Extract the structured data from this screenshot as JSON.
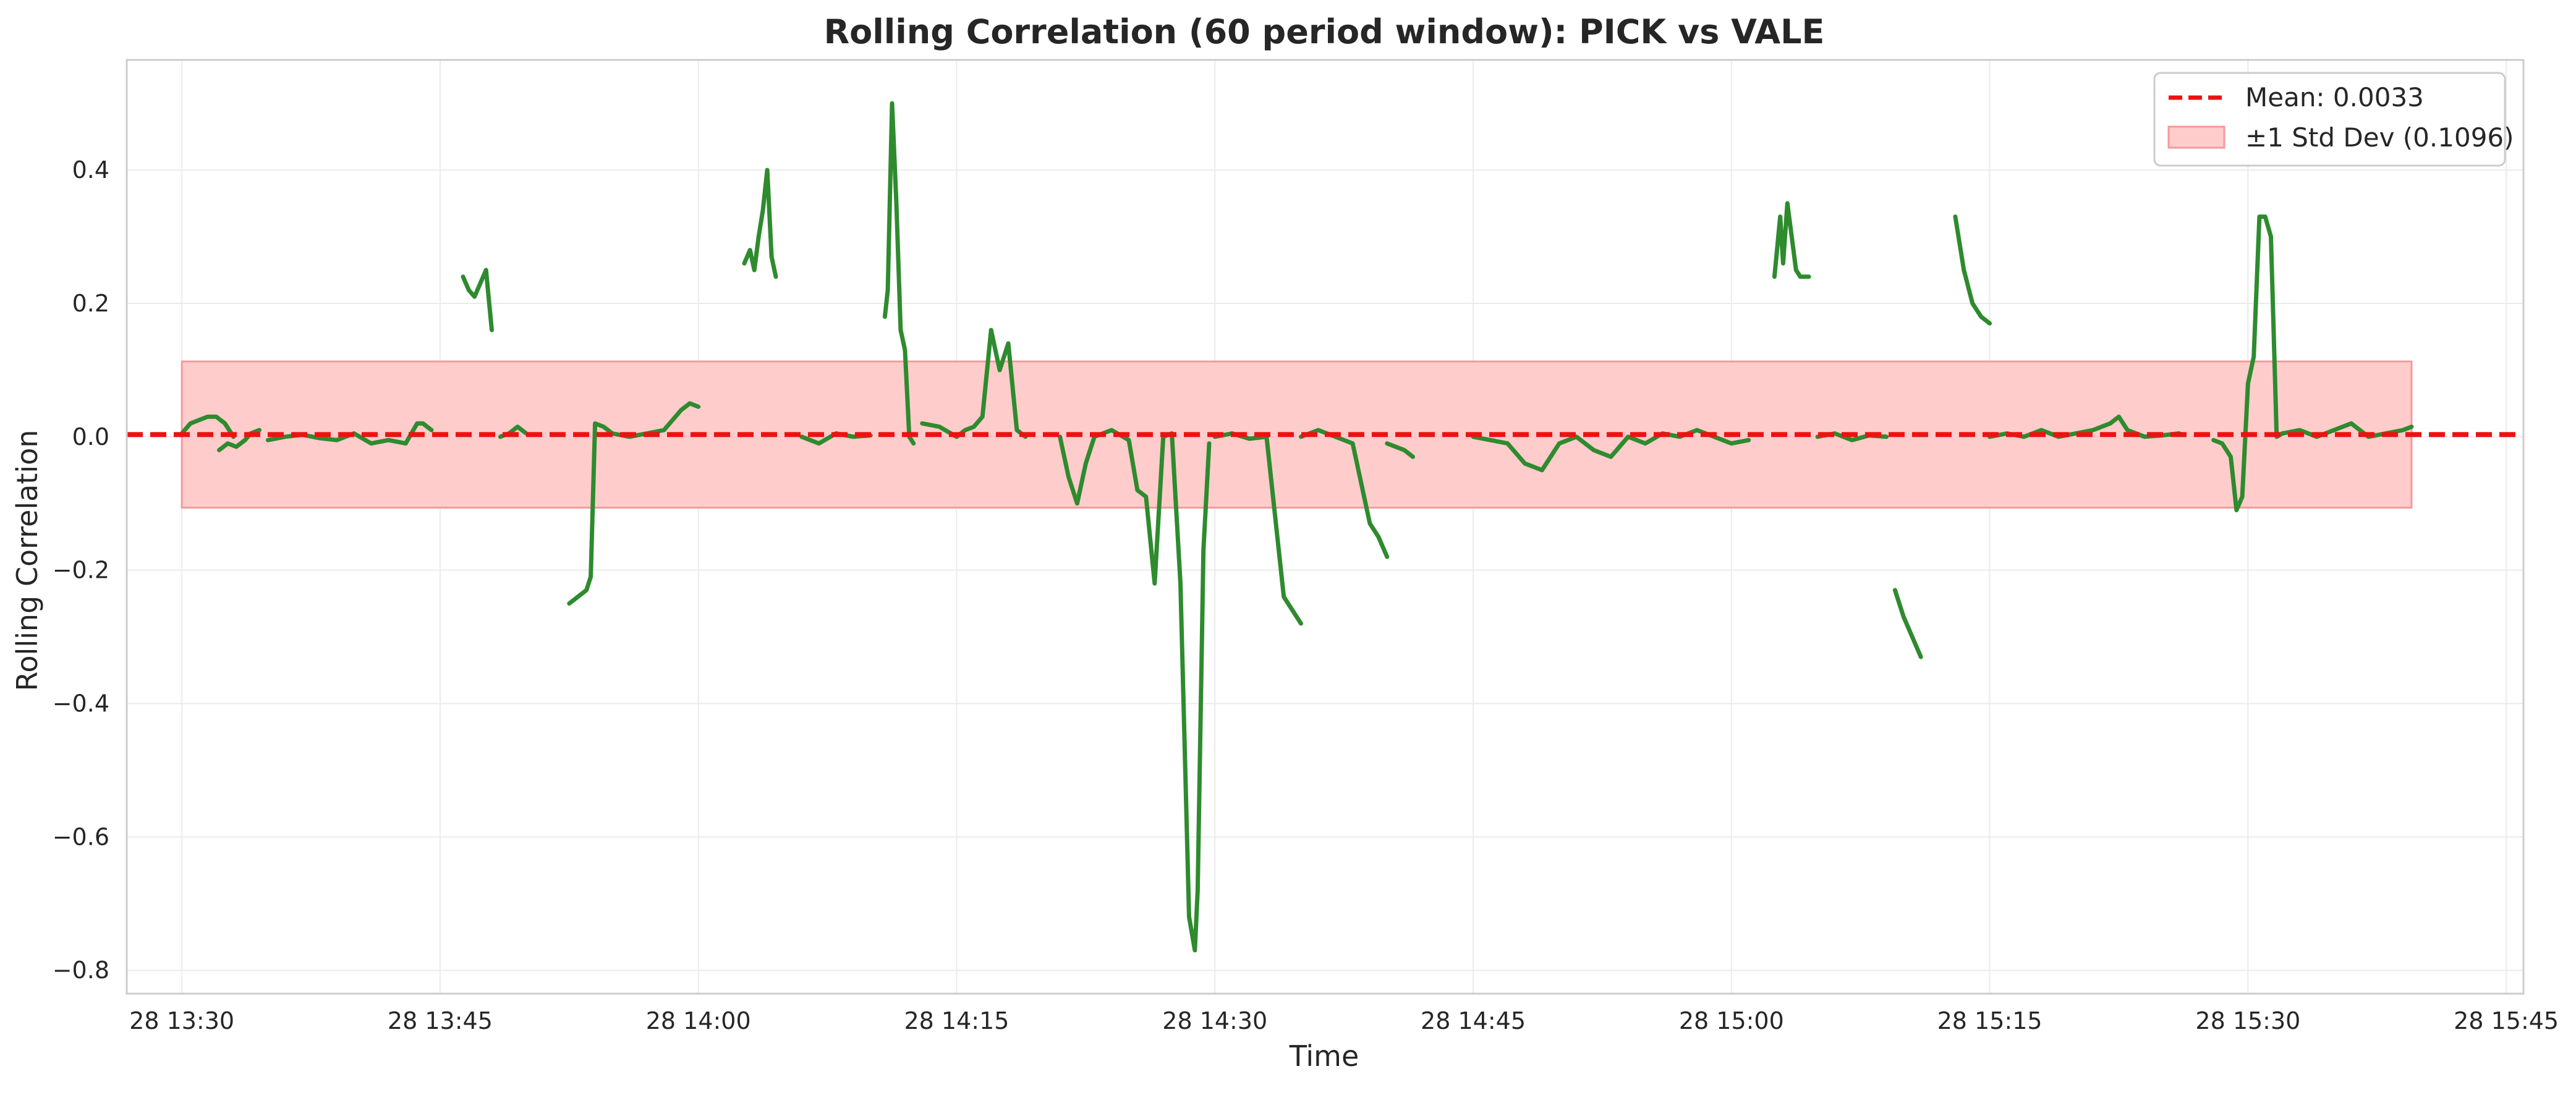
{
  "chart_data": {
    "type": "line",
    "title": "Rolling Correlation (60 period window): PICK vs VALE",
    "xlabel": "Time",
    "ylabel": "Rolling Correlation",
    "x_ticks": [
      "28 13:30",
      "28 13:45",
      "28 14:00",
      "28 14:15",
      "28 14:30",
      "28 14:45",
      "28 15:00",
      "28 15:15",
      "28 15:30",
      "28 15:45"
    ],
    "y_ticks": [
      "−0.8",
      "−0.6",
      "−0.4",
      "−0.2",
      "0.0",
      "0.2",
      "0.4"
    ],
    "y_tick_values": [
      -0.8,
      -0.6,
      -0.4,
      -0.2,
      0.0,
      0.2,
      0.4
    ],
    "xlim": [
      "13:26:48",
      "15:46:00"
    ],
    "ylim": [
      -0.835,
      0.565
    ],
    "grid": true,
    "legend_position": "top-right",
    "legend": {
      "mean_label": "Mean: 0.0033",
      "band_label": "±1 Std Dev (0.1096)"
    },
    "mean": 0.0033,
    "std": 0.1096,
    "band_range": [
      "13:30",
      "15:39:30"
    ],
    "colors": {
      "series": "#2e8b2e",
      "mean_line": "#ee1111",
      "band_fill": "#ffcccc",
      "band_edge": "#f29a9a"
    },
    "series": [
      {
        "segments": [
          {
            "x": [
              "13:30",
              "13:30:30",
              "13:31",
              "13:31:30",
              "13:32",
              "13:32:30",
              "13:33"
            ],
            "y": [
              0.005,
              0.02,
              0.025,
              0.03,
              0.03,
              0.02,
              0.0
            ]
          },
          {
            "x": [
              "13:32:10",
              "13:32:40",
              "13:33:10",
              "13:33:40",
              "13:34",
              "13:34:30"
            ],
            "y": [
              -0.02,
              -0.01,
              -0.015,
              -0.005,
              0.005,
              0.01
            ]
          },
          {
            "x": [
              "13:35",
              "13:36",
              "13:37",
              "13:38",
              "13:39",
              "13:40",
              "13:41",
              "13:42",
              "13:43",
              "13:43:40",
              "13:44",
              "13:44:30"
            ],
            "y": [
              -0.005,
              0.0,
              0.003,
              -0.002,
              -0.005,
              0.005,
              -0.01,
              -0.005,
              -0.01,
              0.02,
              0.02,
              0.01
            ]
          },
          {
            "x": [
              "13:46:20",
              "13:46:40",
              "13:47",
              "13:47:20",
              "13:47:40",
              "13:48"
            ],
            "y": [
              0.24,
              0.22,
              0.21,
              0.23,
              0.25,
              0.16
            ]
          },
          {
            "x": [
              "13:48:30",
              "13:49",
              "13:49:30",
              "13:50"
            ],
            "y": [
              0.0,
              0.005,
              0.015,
              0.005
            ]
          },
          {
            "x": [
              "13:52:30",
              "13:53",
              "13:53:30",
              "13:53:45",
              "13:54",
              "13:54:30",
              "13:55",
              "13:56",
              "13:57",
              "13:58",
              "13:59",
              "13:59:30",
              "14:00"
            ],
            "y": [
              -0.25,
              -0.24,
              -0.23,
              -0.21,
              0.02,
              0.015,
              0.005,
              0.0,
              0.005,
              0.01,
              0.04,
              0.05,
              0.045
            ]
          },
          {
            "x": [
              "14:02:40",
              "14:03",
              "14:03:15",
              "14:03:30",
              "14:03:45",
              "14:04",
              "14:04:15",
              "14:04:30"
            ],
            "y": [
              0.26,
              0.28,
              0.25,
              0.3,
              0.34,
              0.4,
              0.27,
              0.24
            ]
          },
          {
            "x": [
              "14:06",
              "14:07",
              "14:08",
              "14:09",
              "14:10"
            ],
            "y": [
              0.0,
              -0.01,
              0.005,
              0.0,
              0.002
            ]
          },
          {
            "x": [
              "14:10:50",
              "14:11",
              "14:11:15",
              "14:11:30",
              "14:11:45",
              "14:12",
              "14:12:15",
              "14:12:30"
            ],
            "y": [
              0.18,
              0.22,
              0.5,
              0.35,
              0.16,
              0.13,
              0.0,
              -0.01
            ]
          },
          {
            "x": [
              "14:13",
              "14:14",
              "14:15",
              "14:15:30",
              "14:16",
              "14:16:30",
              "14:17",
              "14:17:30",
              "14:18",
              "14:18:30",
              "14:19"
            ],
            "y": [
              0.02,
              0.015,
              0.0,
              0.01,
              0.015,
              0.03,
              0.16,
              0.1,
              0.14,
              0.01,
              0.0
            ]
          },
          {
            "x": [
              "14:21",
              "14:21:30",
              "14:22",
              "14:22:30",
              "14:23",
              "14:24",
              "14:25",
              "14:25:30",
              "14:26",
              "14:26:30",
              "14:27",
              "14:27:30",
              "14:28",
              "14:28:30",
              "14:28:50",
              "14:29",
              "14:29:20",
              "14:29:40"
            ],
            "y": [
              0.0,
              -0.06,
              -0.1,
              -0.04,
              0.0,
              0.01,
              -0.005,
              -0.08,
              -0.09,
              -0.22,
              0.0,
              0.005,
              -0.22,
              -0.72,
              -0.77,
              -0.68,
              -0.17,
              -0.01
            ]
          },
          {
            "x": [
              "14:30",
              "14:31",
              "14:32",
              "14:33",
              "14:34",
              "14:35"
            ],
            "y": [
              0.0,
              0.005,
              -0.003,
              0.0,
              -0.24,
              -0.28
            ]
          },
          {
            "x": [
              "14:35",
              "14:36",
              "14:37",
              "14:38",
              "14:39",
              "14:39:30",
              "14:40"
            ],
            "y": [
              0.0,
              0.01,
              0.0,
              -0.01,
              -0.13,
              -0.15,
              -0.18
            ]
          },
          {
            "x": [
              "14:40",
              "14:41",
              "14:41:30"
            ],
            "y": [
              -0.01,
              -0.02,
              -0.03
            ]
          },
          {
            "x": [
              "14:45",
              "14:46",
              "14:47",
              "14:48",
              "14:49",
              "14:50",
              "14:51",
              "14:52",
              "14:53",
              "14:54",
              "14:55",
              "14:56",
              "14:57",
              "14:58",
              "14:59",
              "15:00",
              "15:01"
            ],
            "y": [
              0.0,
              -0.005,
              -0.01,
              -0.04,
              -0.05,
              -0.01,
              0.0,
              -0.02,
              -0.03,
              0.0,
              -0.01,
              0.005,
              0.0,
              0.01,
              0.0,
              -0.01,
              -0.005
            ]
          },
          {
            "x": [
              "15:02:30",
              "15:02:50",
              "15:03",
              "15:03:15",
              "15:03:30",
              "15:03:45",
              "15:04",
              "15:04:30"
            ],
            "y": [
              0.24,
              0.33,
              0.26,
              0.35,
              0.3,
              0.25,
              0.24,
              0.24
            ]
          },
          {
            "x": [
              "15:05",
              "15:06",
              "15:07",
              "15:08",
              "15:09"
            ],
            "y": [
              0.0,
              0.005,
              -0.005,
              0.002,
              0.0
            ]
          },
          {
            "x": [
              "15:09:30",
              "15:10",
              "15:10:30",
              "15:11"
            ],
            "y": [
              -0.23,
              -0.27,
              -0.3,
              -0.33
            ]
          },
          {
            "x": [
              "15:13",
              "15:13:30",
              "15:14",
              "15:14:30",
              "15:15"
            ],
            "y": [
              0.33,
              0.25,
              0.2,
              0.18,
              0.17
            ]
          },
          {
            "x": [
              "15:15",
              "15:16",
              "15:17",
              "15:18",
              "15:19",
              "15:20",
              "15:21",
              "15:22",
              "15:22:30",
              "15:23",
              "15:24",
              "15:25",
              "15:26"
            ],
            "y": [
              0.0,
              0.005,
              0.0,
              0.01,
              0.0,
              0.005,
              0.01,
              0.02,
              0.03,
              0.01,
              0.0,
              0.002,
              0.005
            ]
          },
          {
            "x": [
              "15:28",
              "15:28:30",
              "15:29",
              "15:29:20",
              "15:29:40",
              "15:30",
              "15:30:20",
              "15:30:40",
              "15:31",
              "15:31:20",
              "15:31:40",
              "15:32"
            ],
            "y": [
              -0.005,
              -0.01,
              -0.03,
              -0.11,
              -0.09,
              0.08,
              0.12,
              0.33,
              0.33,
              0.3,
              0.0,
              0.005
            ]
          },
          {
            "x": [
              "15:32",
              "15:33",
              "15:34",
              "15:35",
              "15:36",
              "15:37",
              "15:38",
              "15:39",
              "15:39:30"
            ],
            "y": [
              0.005,
              0.01,
              0.0,
              0.01,
              0.02,
              0.0,
              0.005,
              0.01,
              0.015
            ]
          }
        ]
      }
    ]
  }
}
